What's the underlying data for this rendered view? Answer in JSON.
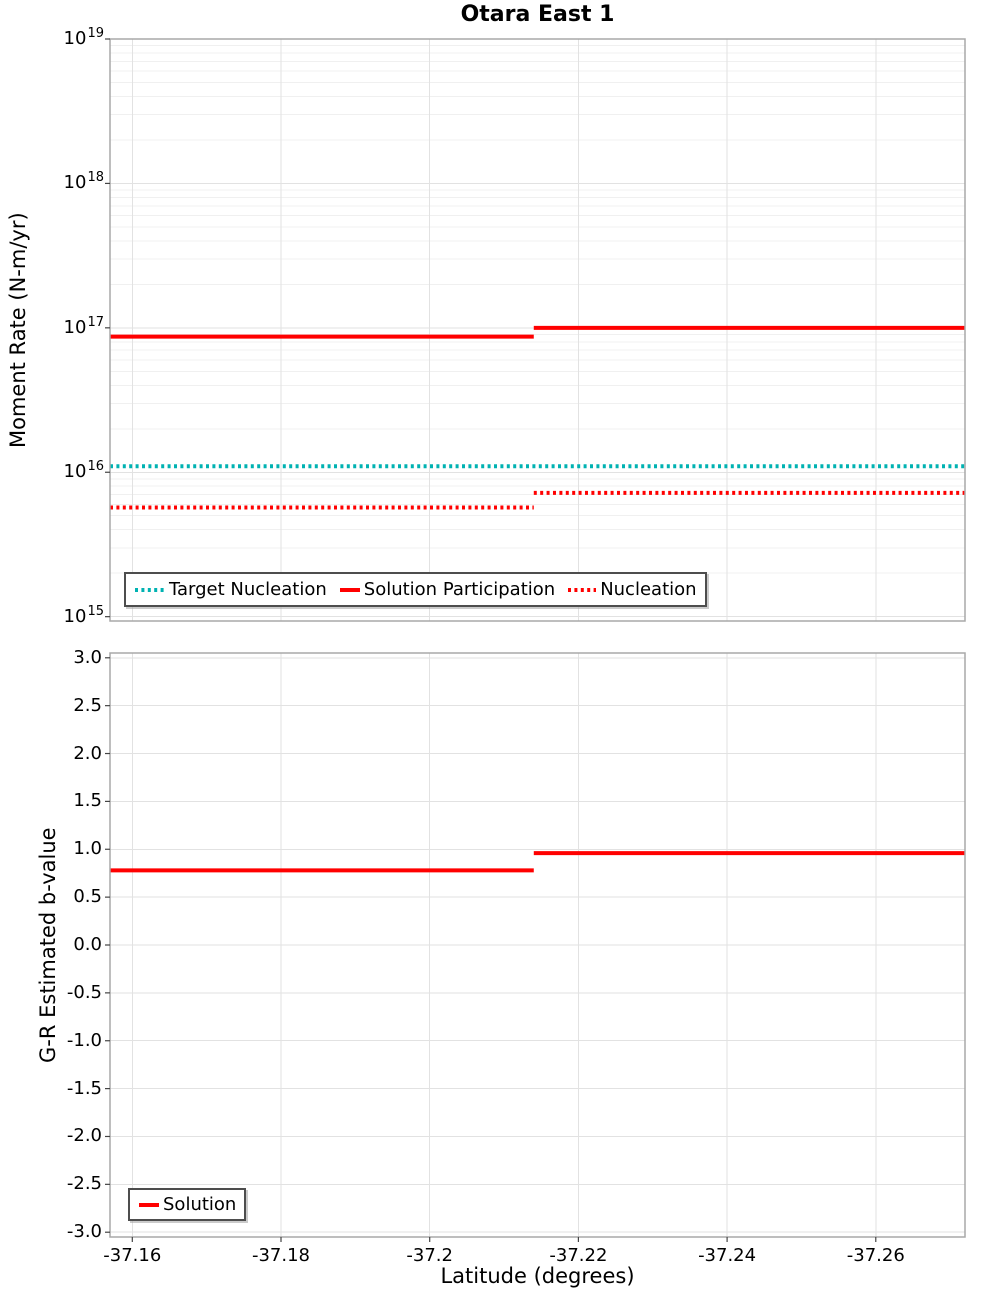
{
  "figure": {
    "title": "Otara East 1",
    "background": "#ffffff"
  },
  "style": {
    "grid_major": "#e2e2e2",
    "grid_minor": "#f0f0f0",
    "border": "#a8a8a8",
    "tick": "#444444",
    "accent_red": "#ff0000",
    "accent_teal": "#00b2b2"
  },
  "chart_data": [
    {
      "id": "moment-rate",
      "type": "line",
      "title": "Otara East 1",
      "ylabel": "Moment Rate (N-m/yr)",
      "x_axis": {
        "label": "Latitude (degrees)",
        "lim": [
          -37.157,
          -37.272
        ],
        "ticks": [
          -37.16,
          -37.18,
          -37.2,
          -37.22,
          -37.24,
          -37.26
        ],
        "tick_labels": [
          "-37.16",
          "-37.18",
          "-37.2",
          "-37.22",
          "-37.24",
          "-37.26"
        ],
        "show_labels": false
      },
      "y_axis": {
        "scale": "log",
        "lim_exp": [
          14.97,
          19
        ],
        "ticks_exp": [
          19,
          18,
          17,
          16,
          15
        ],
        "minor_grid": true
      },
      "grid": true,
      "legend_position": "bottom-left",
      "series": [
        {
          "name": "Target Nucleation",
          "color": "#00b2b2",
          "line_style": "dotted",
          "steps": [
            {
              "x_from": -37.157,
              "x_to": -37.272,
              "y": 1.1e+16
            }
          ]
        },
        {
          "name": "Solution Participation",
          "color": "#ff0000",
          "line_style": "solid",
          "steps": [
            {
              "x_from": -37.157,
              "x_to": -37.214,
              "y": 8.7e+16
            },
            {
              "x_from": -37.214,
              "x_to": -37.272,
              "y": 1e+17
            }
          ]
        },
        {
          "name": "Nucleation",
          "color": "#ff0000",
          "line_style": "dotted",
          "steps": [
            {
              "x_from": -37.157,
              "x_to": -37.214,
              "y": 5700000000000000.0
            },
            {
              "x_from": -37.214,
              "x_to": -37.272,
              "y": 7200000000000000.0
            }
          ]
        }
      ]
    },
    {
      "id": "b-value",
      "type": "line",
      "title": "",
      "ylabel": "G-R Estimated b-value",
      "x_axis": {
        "label": "Latitude (degrees)",
        "lim": [
          -37.157,
          -37.272
        ],
        "ticks": [
          -37.16,
          -37.18,
          -37.2,
          -37.22,
          -37.24,
          -37.26
        ],
        "tick_labels": [
          "-37.16",
          "-37.18",
          "-37.2",
          "-37.22",
          "-37.24",
          "-37.26"
        ],
        "show_labels": true
      },
      "y_axis": {
        "scale": "linear",
        "lim": [
          -3.05,
          3.05
        ],
        "ticks": [
          3.0,
          2.5,
          2.0,
          1.5,
          1.0,
          0.5,
          0.0,
          -0.5,
          -1.0,
          -1.5,
          -2.0,
          -2.5,
          -3.0
        ],
        "tick_labels": [
          "3.0",
          "2.5",
          "2.0",
          "1.5",
          "1.0",
          "0.5",
          "0.0",
          "-0.5",
          "-1.0",
          "-1.5",
          "-2.0",
          "-2.5",
          "-3.0"
        ],
        "minor_grid": false
      },
      "grid": true,
      "legend_position": "bottom-left",
      "series": [
        {
          "name": "Solution",
          "color": "#ff0000",
          "line_style": "solid",
          "steps": [
            {
              "x_from": -37.157,
              "x_to": -37.214,
              "y": 0.78
            },
            {
              "x_from": -37.214,
              "x_to": -37.272,
              "y": 0.96
            }
          ]
        }
      ]
    }
  ]
}
